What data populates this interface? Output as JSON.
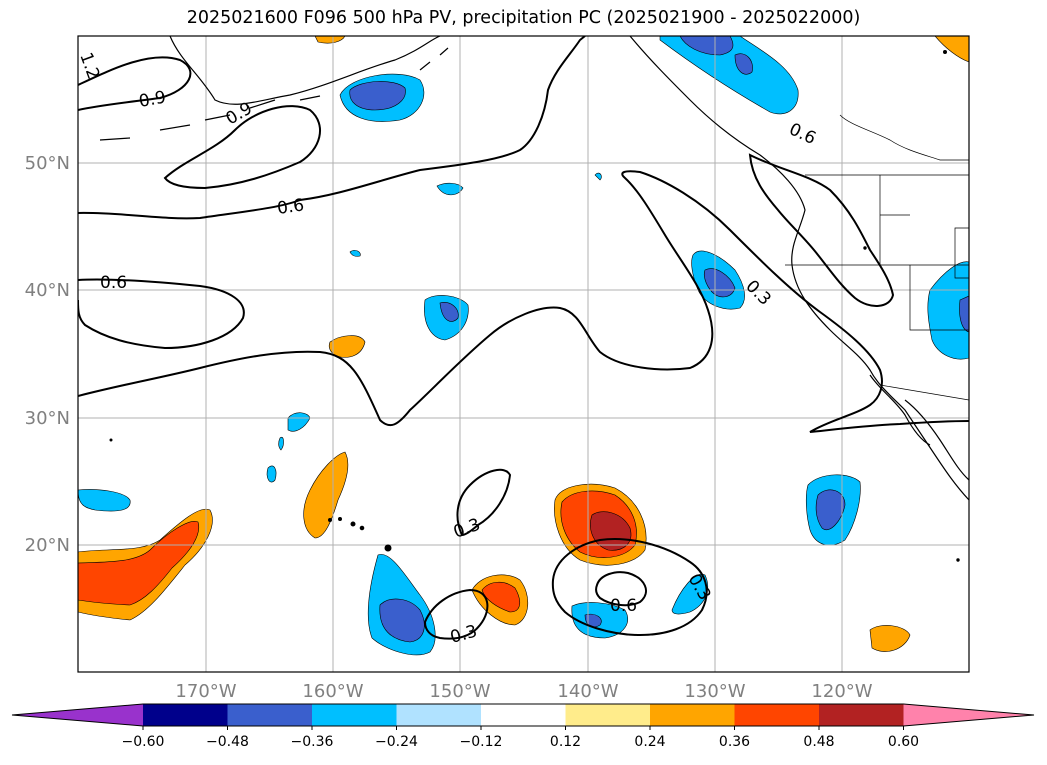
{
  "title": "2025021600 F096 500 hPa PV, precipitation PC (2025021900 - 2025022000)",
  "map": {
    "lon_range": [
      -180,
      -110
    ],
    "lat_range": [
      10,
      60
    ],
    "lon_ticks": [
      {
        "value": -170,
        "label": "170°W"
      },
      {
        "value": -160,
        "label": "160°W"
      },
      {
        "value": -150,
        "label": "150°W"
      },
      {
        "value": -140,
        "label": "140°W"
      },
      {
        "value": -130,
        "label": "130°W"
      },
      {
        "value": -120,
        "label": "120°W"
      }
    ],
    "lat_ticks": [
      {
        "value": 20,
        "label": "20°N"
      },
      {
        "value": 30,
        "label": "30°N"
      },
      {
        "value": 40,
        "label": "40°N"
      },
      {
        "value": 50,
        "label": "50°N"
      }
    ],
    "contour_labels": [
      "1.2",
      "0.9",
      "0.9",
      "0.6",
      "0.6",
      "0.6",
      "0.3",
      "0.3",
      "0.3",
      "0.6",
      "0.3"
    ]
  },
  "colorbar": {
    "colors": [
      "#9932cc",
      "#00008b",
      "#3a5fcd",
      "#00bfff",
      "#b0e2ff",
      "#ffffff",
      "#ffec8b",
      "#ffa500",
      "#ff4500",
      "#b22222",
      "#ff82ab"
    ],
    "tick_labels": [
      "−0.60",
      "−0.48",
      "−0.36",
      "−0.24",
      "−0.12",
      "0.12",
      "0.24",
      "0.36",
      "0.48",
      "0.60"
    ]
  }
}
